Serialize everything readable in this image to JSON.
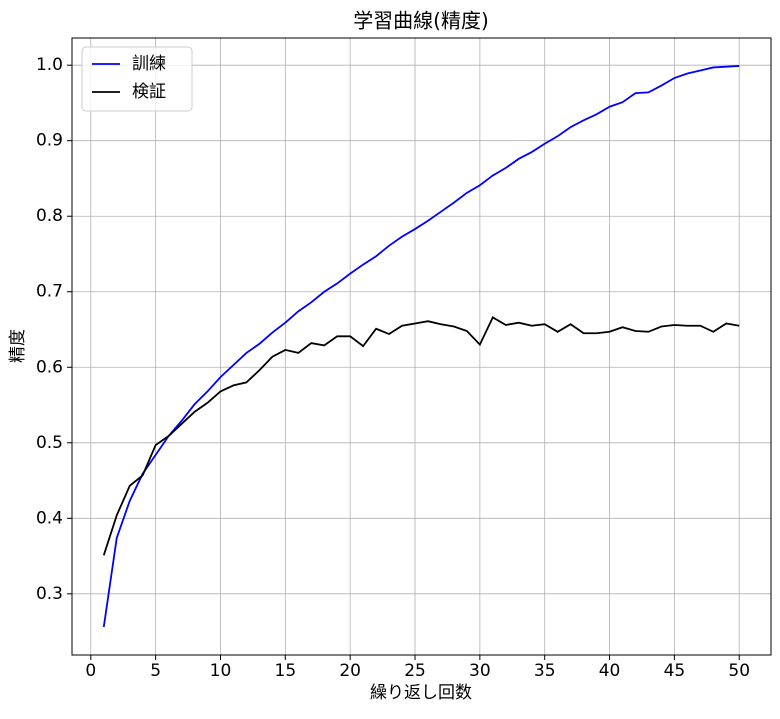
{
  "chart_data": {
    "type": "line",
    "title": "学習曲線(精度)",
    "x_label": "繰り返し回数",
    "y_label": "精度",
    "x": [
      1,
      2,
      3,
      4,
      5,
      6,
      7,
      8,
      9,
      10,
      11,
      12,
      13,
      14,
      15,
      16,
      17,
      18,
      19,
      20,
      21,
      22,
      23,
      24,
      25,
      26,
      27,
      28,
      29,
      30,
      31,
      32,
      33,
      34,
      35,
      36,
      37,
      38,
      39,
      40,
      41,
      42,
      43,
      44,
      45,
      46,
      47,
      48,
      49,
      50
    ],
    "series": [
      {
        "name": "訓練",
        "color": "#0000ff",
        "values": [
          0.256,
          0.374,
          0.423,
          0.459,
          0.484,
          0.509,
          0.529,
          0.551,
          0.568,
          0.587,
          0.603,
          0.619,
          0.631,
          0.646,
          0.659,
          0.674,
          0.686,
          0.7,
          0.711,
          0.724,
          0.736,
          0.747,
          0.761,
          0.773,
          0.783,
          0.794,
          0.806,
          0.818,
          0.831,
          0.841,
          0.854,
          0.864,
          0.876,
          0.885,
          0.896,
          0.906,
          0.918,
          0.927,
          0.935,
          0.945,
          0.951,
          0.963,
          0.964,
          0.973,
          0.983,
          0.989,
          0.993,
          0.997,
          0.998,
          0.999
        ]
      },
      {
        "name": "検証",
        "color": "#000000",
        "values": [
          0.351,
          0.404,
          0.443,
          0.457,
          0.497,
          0.509,
          0.525,
          0.541,
          0.553,
          0.568,
          0.576,
          0.58,
          0.596,
          0.614,
          0.623,
          0.619,
          0.632,
          0.629,
          0.641,
          0.641,
          0.628,
          0.651,
          0.644,
          0.655,
          0.658,
          0.661,
          0.657,
          0.654,
          0.648,
          0.63,
          0.666,
          0.656,
          0.659,
          0.655,
          0.657,
          0.647,
          0.657,
          0.645,
          0.645,
          0.647,
          0.653,
          0.648,
          0.647,
          0.654,
          0.656,
          0.655,
          0.655,
          0.647,
          0.658,
          0.655
        ]
      }
    ],
    "xlim": [
      -1.45,
      52.45
    ],
    "xticks": [
      0,
      5,
      10,
      15,
      20,
      25,
      30,
      35,
      40,
      45,
      50
    ],
    "ylim": [
      0.219,
      1.036
    ],
    "yticks": [
      0.3,
      0.4,
      0.5,
      0.6,
      0.7,
      0.8,
      0.9,
      {
        "value": 1,
        "label": "1.0"
      }
    ],
    "grid": true,
    "legend": "upper left"
  }
}
